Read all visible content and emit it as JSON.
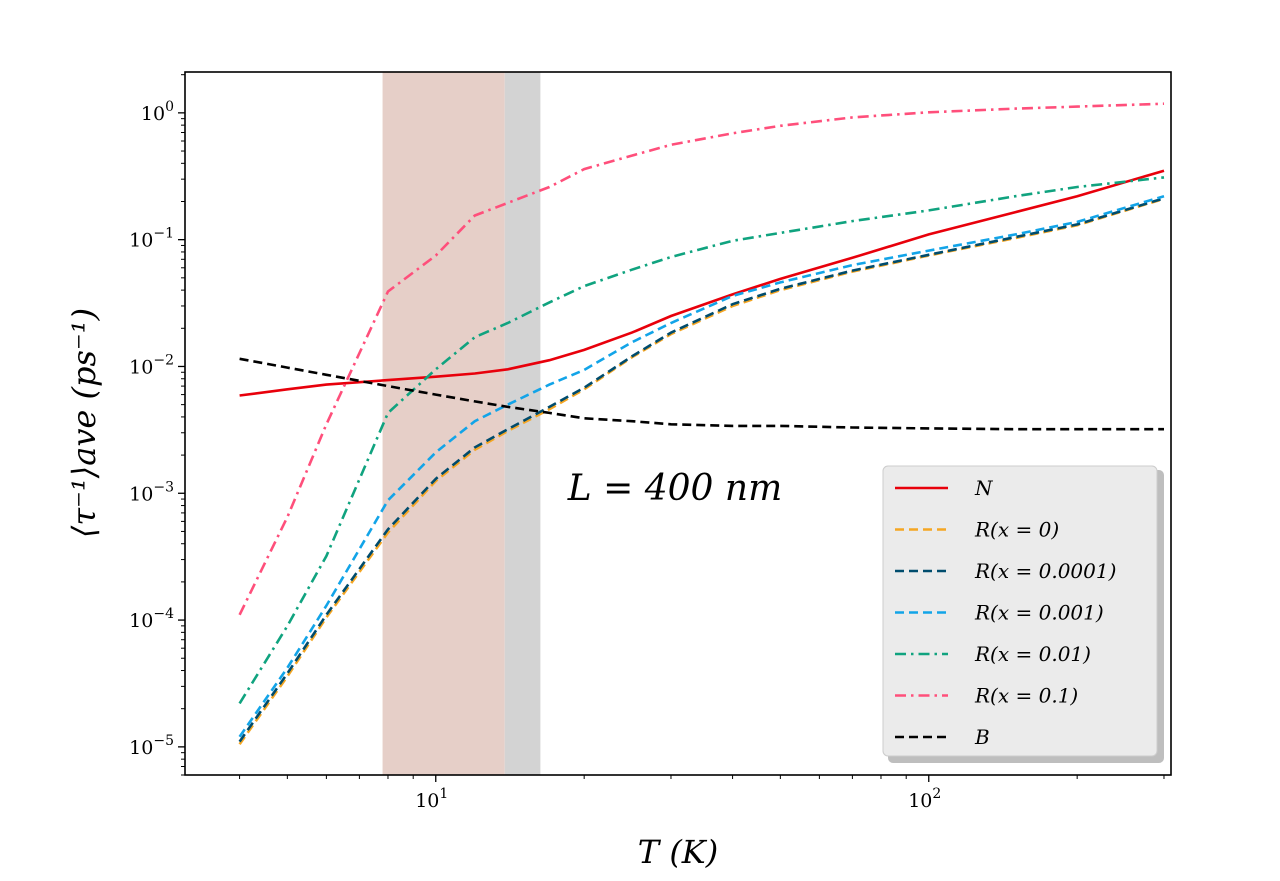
{
  "chart_data": {
    "type": "line",
    "title": "",
    "xlabel": "T (K)",
    "ylabel": "⟨τ⁻¹⟩ave (ps⁻¹)",
    "xscale": "log",
    "yscale": "log",
    "xlim": [
      3.1,
      310
    ],
    "ylim": [
      6e-06,
      2.1
    ],
    "x_major_ticks": [
      {
        "value": 10,
        "base": "10",
        "exp": "1"
      },
      {
        "value": 100,
        "base": "10",
        "exp": "2"
      }
    ],
    "y_major_ticks": [
      {
        "value": 1e-05,
        "base": "10",
        "exp": "−5"
      },
      {
        "value": 0.0001,
        "base": "10",
        "exp": "−4"
      },
      {
        "value": 0.001,
        "base": "10",
        "exp": "−3"
      },
      {
        "value": 0.01,
        "base": "10",
        "exp": "−2"
      },
      {
        "value": 0.1,
        "base": "10",
        "exp": "−1"
      },
      {
        "value": 1,
        "base": "10",
        "exp": "0"
      }
    ],
    "shaded_regions": [
      {
        "x0": 7.8,
        "x1": 13.8,
        "color": "#e6cfc8"
      },
      {
        "x0": 13.8,
        "x1": 16.3,
        "color": "#d3d3d3"
      }
    ],
    "annotations": [
      {
        "text": "L = 400 nm",
        "x": 33,
        "y": 0.001
      }
    ],
    "legend": {
      "position": "lower-right"
    },
    "series": [
      {
        "name": "N",
        "color": "#e8000b",
        "dash": "solid",
        "x": [
          4,
          5,
          6,
          8,
          10,
          12,
          14,
          17,
          20,
          25,
          30,
          40,
          50,
          70,
          100,
          150,
          200,
          300
        ],
        "y": [
          0.0059,
          0.0066,
          0.0072,
          0.0078,
          0.0083,
          0.0088,
          0.0095,
          0.0112,
          0.0135,
          0.0185,
          0.025,
          0.037,
          0.049,
          0.072,
          0.11,
          0.165,
          0.22,
          0.35
        ]
      },
      {
        "name": "R(x = 0)",
        "color": "#f5a623",
        "dash": "dashed",
        "x": [
          4,
          5,
          6,
          8,
          10,
          12,
          14,
          17,
          20,
          25,
          30,
          40,
          50,
          70,
          100,
          150,
          200,
          300
        ],
        "y": [
          1.05e-05,
          3.6e-05,
          0.000105,
          0.00049,
          0.00125,
          0.0022,
          0.0031,
          0.0046,
          0.0066,
          0.0118,
          0.018,
          0.03,
          0.04,
          0.056,
          0.075,
          0.103,
          0.13,
          0.21
        ]
      },
      {
        "name": "R(x = 0.0001)",
        "color": "#004c6d",
        "dash": "dashed",
        "x": [
          4,
          5,
          6,
          8,
          10,
          12,
          14,
          17,
          20,
          25,
          30,
          40,
          50,
          70,
          100,
          150,
          200,
          300
        ],
        "y": [
          1.1e-05,
          3.8e-05,
          0.00011,
          0.00052,
          0.0013,
          0.0023,
          0.0032,
          0.0048,
          0.0068,
          0.012,
          0.0185,
          0.031,
          0.041,
          0.057,
          0.076,
          0.105,
          0.132,
          0.212
        ]
      },
      {
        "name": "R(x = 0.001)",
        "color": "#12a4e8",
        "dash": "dashed",
        "x": [
          4,
          5,
          6,
          8,
          10,
          12,
          14,
          17,
          20,
          25,
          30,
          40,
          50,
          70,
          100,
          150,
          200,
          300
        ],
        "y": [
          1.2e-05,
          4.2e-05,
          0.00013,
          0.00088,
          0.0021,
          0.0037,
          0.005,
          0.0072,
          0.0094,
          0.0155,
          0.022,
          0.036,
          0.046,
          0.063,
          0.082,
          0.11,
          0.138,
          0.22
        ]
      },
      {
        "name": "R(x = 0.01)",
        "color": "#10a37f",
        "dash": "dashdot",
        "x": [
          4,
          5,
          6,
          8,
          10,
          12,
          14,
          17,
          20,
          25,
          30,
          40,
          50,
          70,
          100,
          150,
          200,
          300
        ],
        "y": [
          2.2e-05,
          9e-05,
          0.00032,
          0.0043,
          0.0095,
          0.017,
          0.022,
          0.032,
          0.043,
          0.058,
          0.073,
          0.098,
          0.113,
          0.14,
          0.17,
          0.22,
          0.26,
          0.31
        ]
      },
      {
        "name": "R(x = 0.1)",
        "color": "#ff4f7b",
        "dash": "dashdot",
        "x": [
          4,
          5,
          6,
          8,
          10,
          12,
          14,
          17,
          20,
          25,
          30,
          40,
          50,
          70,
          100,
          150,
          200,
          300
        ],
        "y": [
          0.00011,
          0.00065,
          0.0035,
          0.039,
          0.075,
          0.155,
          0.195,
          0.26,
          0.36,
          0.46,
          0.56,
          0.69,
          0.79,
          0.92,
          1.01,
          1.08,
          1.12,
          1.18
        ]
      },
      {
        "name": "B",
        "color": "#000000",
        "dash": "dashed",
        "x": [
          4,
          5,
          6,
          8,
          10,
          12,
          14,
          17,
          20,
          25,
          30,
          40,
          50,
          70,
          100,
          150,
          200,
          300
        ],
        "y": [
          0.0115,
          0.0098,
          0.0086,
          0.007,
          0.006,
          0.0053,
          0.0048,
          0.0043,
          0.0039,
          0.0037,
          0.0035,
          0.0034,
          0.0034,
          0.0033,
          0.00325,
          0.0032,
          0.0032,
          0.0032
        ]
      }
    ]
  }
}
